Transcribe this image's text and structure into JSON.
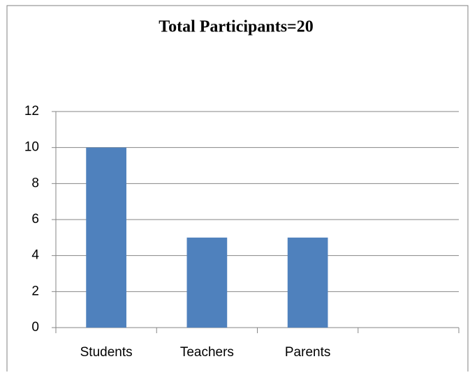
{
  "chart_data": {
    "type": "bar",
    "title": "Total Participants=20",
    "categories": [
      "Students",
      "Teachers",
      "Parents",
      null
    ],
    "values": [
      10,
      5,
      5,
      null
    ],
    "color": "#4f81bd",
    "ylim": [
      0,
      12
    ],
    "yticks": [
      0,
      2,
      4,
      6,
      8,
      10,
      12
    ],
    "grid": true
  }
}
